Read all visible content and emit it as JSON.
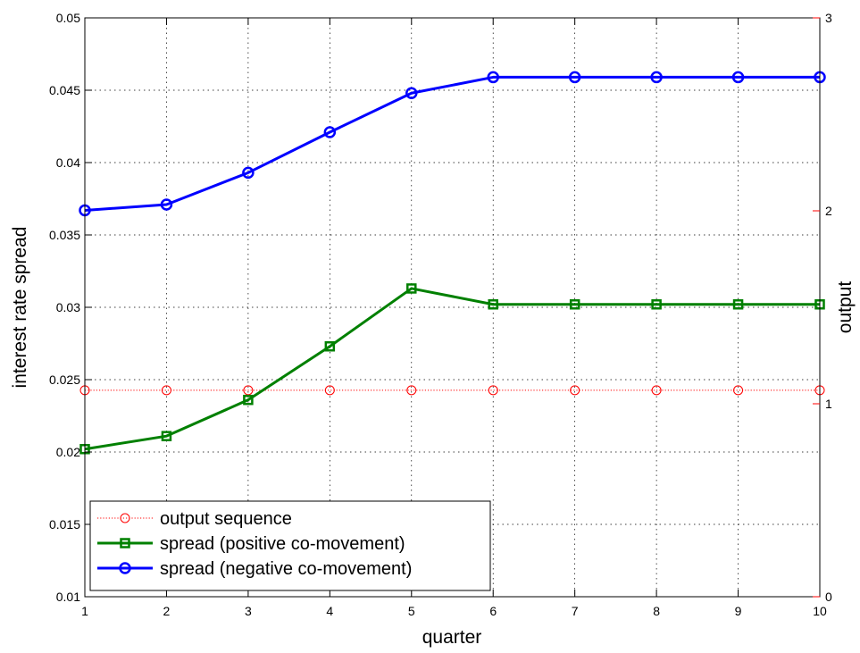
{
  "chart_data": {
    "type": "line",
    "xlabel": "quarter",
    "ylabel": "interest rate spread",
    "y2label": "output",
    "x": [
      1,
      2,
      3,
      4,
      5,
      6,
      7,
      8,
      9,
      10
    ],
    "xlim": [
      1,
      10
    ],
    "ylim": [
      0.01,
      0.05
    ],
    "y2lim": [
      0,
      3
    ],
    "x_ticks": [
      "1",
      "2",
      "3",
      "4",
      "5",
      "6",
      "7",
      "8",
      "9",
      "10"
    ],
    "y_ticks": [
      "0.01",
      "0.015",
      "0.02",
      "0.025",
      "0.03",
      "0.035",
      "0.04",
      "0.045",
      "0.05"
    ],
    "y2_ticks": [
      "0",
      "1",
      "2",
      "3"
    ],
    "grid": true,
    "legend_position": "bottom-left",
    "series": [
      {
        "name": "output sequence",
        "axis": "right",
        "color": "#ff0000",
        "line_style": "dotted",
        "marker": "circle",
        "values": [
          1.07,
          1.07,
          1.07,
          1.07,
          1.07,
          1.07,
          1.07,
          1.07,
          1.07,
          1.07
        ]
      },
      {
        "name": "spread (positive co-movement)",
        "axis": "left",
        "color": "#008000",
        "line_style": "solid",
        "marker": "square",
        "values": [
          0.0202,
          0.0211,
          0.0236,
          0.0273,
          0.0313,
          0.0302,
          0.0302,
          0.0302,
          0.0302,
          0.0302
        ]
      },
      {
        "name": "spread (negative co-movement)",
        "axis": "left",
        "color": "#0000ff",
        "line_style": "solid",
        "marker": "circle",
        "values": [
          0.0367,
          0.0371,
          0.0393,
          0.0421,
          0.0448,
          0.0459,
          0.0459,
          0.0459,
          0.0459,
          0.0459
        ]
      }
    ]
  }
}
